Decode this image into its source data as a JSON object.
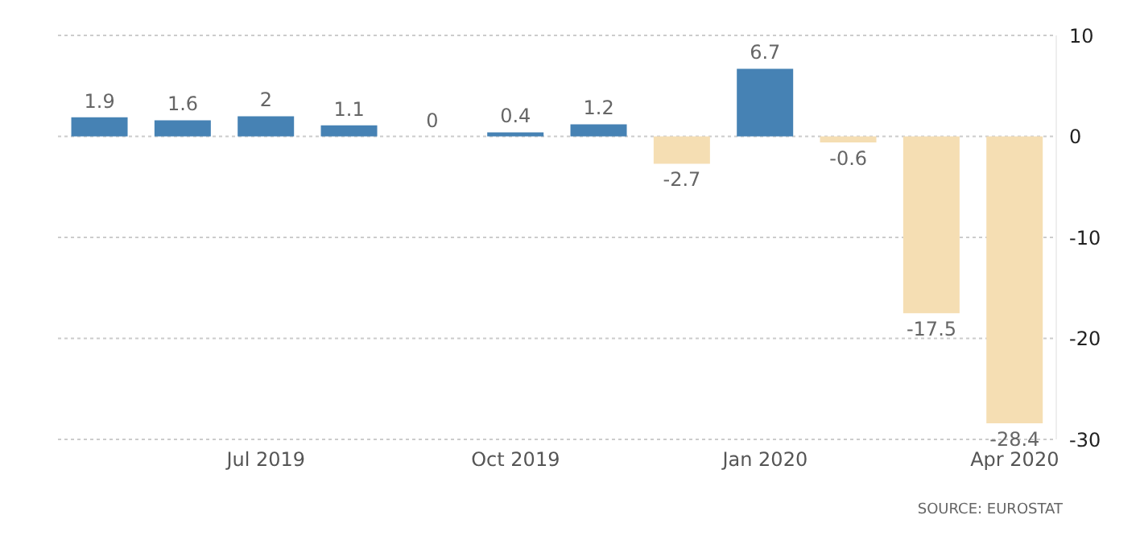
{
  "chart_data": {
    "type": "bar",
    "categories": [
      null,
      null,
      "Jul 2019",
      null,
      null,
      "Oct 2019",
      null,
      null,
      "Jan 2020",
      null,
      null,
      "Apr 2020"
    ],
    "values": [
      1.9,
      1.6,
      2,
      1.1,
      0,
      0.4,
      1.2,
      -2.7,
      6.7,
      -0.6,
      -17.5,
      -28.4
    ],
    "colors": [
      "#4682b4",
      "#4682b4",
      "#4682b4",
      "#4682b4",
      "#4682b4",
      "#4682b4",
      "#4682b4",
      "#f5deb3",
      "#4682b4",
      "#f5deb3",
      "#f5deb3",
      "#f5deb3"
    ],
    "ylim": [
      -30,
      10
    ],
    "yticks": [
      -30,
      -20,
      -10,
      0,
      10
    ],
    "grid": "y",
    "data_labels": true,
    "annotations": [
      "SOURCE: EUROSTAT"
    ]
  }
}
